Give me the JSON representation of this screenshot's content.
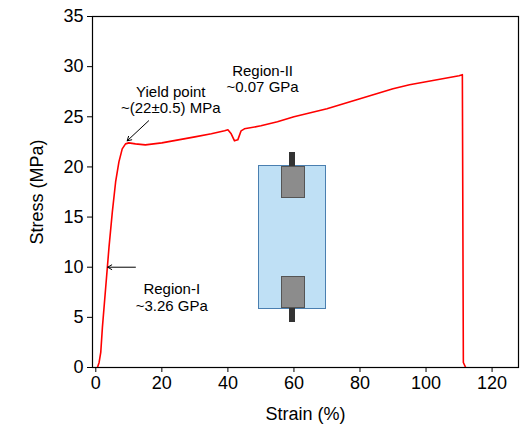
{
  "chart_data": {
    "type": "line",
    "x_label": "Strain (%)",
    "y_label": "Stress (MPa)",
    "xlim": [
      -1,
      128
    ],
    "xticks": [
      0,
      20,
      40,
      60,
      80,
      100,
      120
    ],
    "ylim": [
      0,
      35
    ],
    "yticks": [
      0,
      5,
      10,
      15,
      20,
      25,
      30,
      35
    ],
    "color": "#ff0000",
    "x": [
      0.5,
      1,
      1.5,
      2,
      3,
      4,
      5,
      6,
      7,
      8,
      9,
      10,
      12,
      15,
      20,
      25,
      30,
      35,
      39,
      40,
      41,
      42,
      43,
      44,
      45,
      50,
      55,
      60,
      65,
      70,
      75,
      80,
      85,
      90,
      95,
      100,
      105,
      110,
      111,
      111.3,
      112
    ],
    "values": [
      0,
      0.5,
      1.5,
      4,
      8,
      12,
      15.5,
      18.5,
      20.5,
      21.8,
      22.3,
      22.4,
      22.3,
      22.2,
      22.4,
      22.7,
      23,
      23.3,
      23.6,
      23.7,
      23.3,
      22.6,
      22.7,
      23.6,
      23.8,
      24.1,
      24.5,
      25,
      25.4,
      25.8,
      26.3,
      26.8,
      27.3,
      27.8,
      28.2,
      28.5,
      28.8,
      29.1,
      29.2,
      0.5,
      0
    ],
    "annotations": [
      {
        "lines": [
          "Yield point",
          "~(22±0.5) MPa"
        ],
        "x": 22.7,
        "y": 26.7,
        "arrow_from": [
          16,
          24.6
        ],
        "arrow_to": [
          9.5,
          22.6
        ]
      },
      {
        "lines": [
          "Region-II",
          "~0.07 GPa"
        ],
        "x": 50.5,
        "y": 28.8
      },
      {
        "lines": [
          "Region-I",
          "~3.26 GPa"
        ],
        "x": 23,
        "y": 7,
        "arrow_from": [
          12,
          10
        ],
        "arrow_to": [
          3.6,
          10
        ]
      }
    ]
  }
}
